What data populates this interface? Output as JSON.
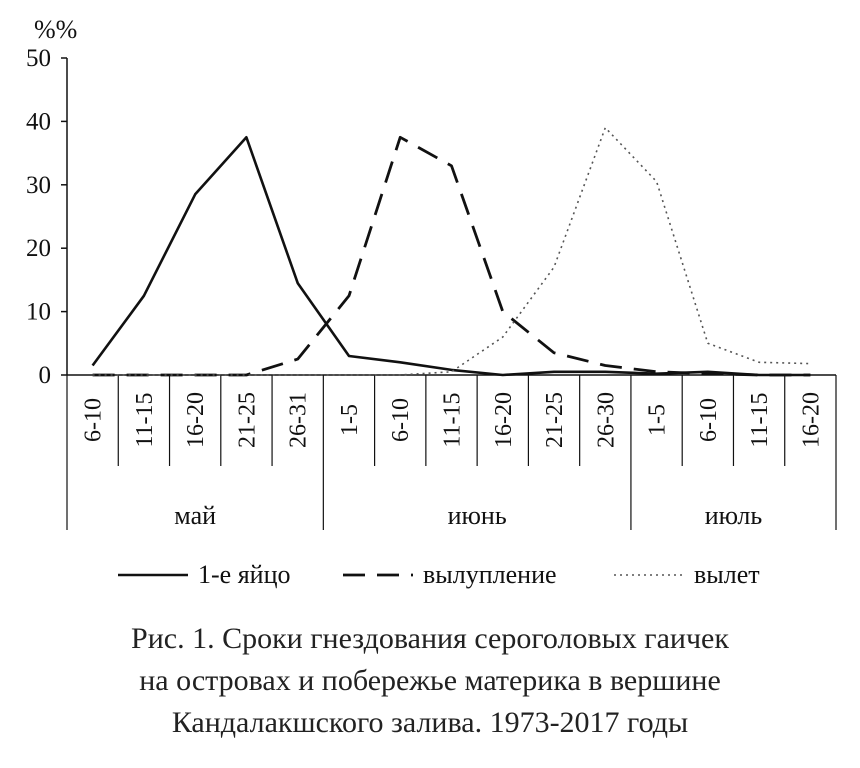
{
  "chart_data": {
    "type": "line",
    "ylabel": "%%",
    "ylim": [
      0,
      50
    ],
    "yticks": [
      0,
      10,
      20,
      30,
      40,
      50
    ],
    "categories": [
      "6-10",
      "11-15",
      "16-20",
      "21-25",
      "26-31",
      "1-5",
      "6-10",
      "11-15",
      "16-20",
      "21-25",
      "26-30",
      "1-5",
      "6-10",
      "11-15",
      "16-20"
    ],
    "months": [
      {
        "label": "май",
        "start": 0,
        "end": 4
      },
      {
        "label": "июнь",
        "start": 5,
        "end": 10
      },
      {
        "label": "июль",
        "start": 11,
        "end": 14
      }
    ],
    "series": [
      {
        "name": "1-е яйцо",
        "style": "solid",
        "values": [
          1.5,
          12.5,
          28.5,
          37.5,
          14.5,
          3,
          2,
          0.8,
          0,
          0.5,
          0.5,
          0.2,
          0.5,
          0,
          0
        ]
      },
      {
        "name": "вылупление",
        "style": "dashed",
        "values": [
          0,
          0,
          0,
          0,
          2.5,
          12.5,
          37.5,
          33,
          10,
          3.5,
          1.5,
          0.5,
          0.2,
          0,
          0
        ]
      },
      {
        "name": "вылет",
        "style": "dotted",
        "values": [
          0,
          0,
          0,
          0,
          0,
          0,
          0,
          0.5,
          6,
          17,
          39,
          30.5,
          5,
          2,
          1.8
        ]
      }
    ],
    "legend_position": "bottom",
    "grid": false
  },
  "caption": [
    "Рис. 1. Сроки гнездования сероголовых гаичек",
    "на островах и побережье материка в вершине",
    "Кандалакшского залива. 1973-2017 годы"
  ]
}
